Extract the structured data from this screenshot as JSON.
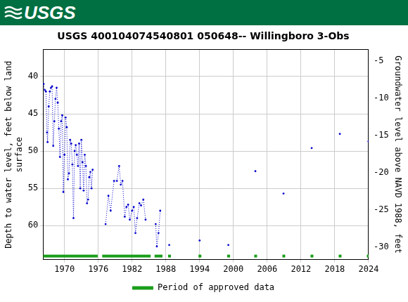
{
  "banner": {
    "text": "USGS"
  },
  "chart_data": {
    "type": "scatter",
    "title": "USGS 400104074540801 050648-- Willingboro 3-Obs",
    "y_label": [
      "Depth to water level, feet below land",
      "surface"
    ],
    "y2_label": "Groundwater level above NAVD 1988, feet",
    "xlim": [
      1966.2,
      2024
    ],
    "xticks": [
      1970,
      1976,
      1982,
      1988,
      1994,
      2000,
      2006,
      2012,
      2018,
      2024
    ],
    "ylim": [
      64.56,
      36.4
    ],
    "yticks": [
      40,
      45,
      50,
      55,
      60
    ],
    "y2lim": [
      -31.66,
      -3.5
    ],
    "y2ticks": [
      -30,
      -25,
      -20,
      -15,
      -10,
      -5
    ],
    "grid": true,
    "legend": "bottom",
    "series": [
      {
        "name": "Depth to water level",
        "color": "#0000cc",
        "marker": "circle",
        "line_style": "dotted",
        "x": [
          1966.3,
          1966.5,
          1966.7,
          1966.9,
          1967.0,
          1967.2,
          1967.4,
          1967.6,
          1967.8,
          1968.0,
          1968.2,
          1968.4,
          1968.6,
          1968.8,
          1969.0,
          1969.2,
          1969.4,
          1969.6,
          1969.8,
          1970.0,
          1970.2,
          1970.4,
          1970.6,
          1970.8,
          1971.0,
          1971.2,
          1971.4,
          1971.6,
          1971.8,
          1972.0,
          1972.2,
          1972.4,
          1972.6,
          1972.8,
          1973.0,
          1973.2,
          1973.4,
          1973.6,
          1973.8,
          1974.0,
          1974.2,
          1974.4,
          1974.6,
          1974.8,
          1975.0,
          null,
          1977.3,
          1977.8,
          1978.2,
          1978.8,
          1979.3,
          1979.7,
          1980.0,
          1980.3,
          1980.7,
          1981.0,
          1981.3,
          1981.6,
          1982.0,
          1982.3,
          1982.6,
          1982.9,
          1983.3,
          1983.6,
          1984.0,
          1984.4,
          null,
          1986.2,
          1986.4,
          1986.7,
          1987.0,
          null,
          1988.6,
          null,
          1994.0,
          null,
          1999.1,
          null,
          2003.9,
          null,
          2008.9,
          null,
          2013.9,
          null,
          2018.9,
          null,
          2024.0
        ],
        "values": [
          41.0,
          41.8,
          42.0,
          47.5,
          48.8,
          44.0,
          42.0,
          41.5,
          41.3,
          49.3,
          46.0,
          43.0,
          41.5,
          43.5,
          47.0,
          50.8,
          46.0,
          45.2,
          55.5,
          50.5,
          45.5,
          46.8,
          53.8,
          53.0,
          48.5,
          49.0,
          51.8,
          59.0,
          50.0,
          49.2,
          50.5,
          52.0,
          49.0,
          55.0,
          48.5,
          51.5,
          55.3,
          50.5,
          52.0,
          57.0,
          56.5,
          53.5,
          52.8,
          55.0,
          52.5,
          null,
          59.8,
          56.0,
          58.0,
          54.0,
          54.0,
          52.0,
          54.5,
          54.0,
          58.8,
          57.5,
          57.2,
          59.2,
          58.0,
          57.5,
          61.0,
          59.0,
          57.0,
          57.3,
          56.5,
          59.2,
          null,
          59.8,
          62.8,
          61.0,
          58.0,
          null,
          62.6,
          null,
          62.0,
          null,
          62.6,
          null,
          52.7,
          null,
          55.7,
          null,
          49.6,
          null,
          47.7,
          null,
          48.7
        ]
      }
    ],
    "approved_periods": {
      "name": "Period of approved data",
      "color": "#1a9e1a",
      "periods": [
        [
          1966.2,
          1975.9
        ],
        [
          1976.7,
          1985.3
        ],
        [
          1986.0,
          1987.4
        ],
        [
          1988.4,
          1988.9
        ],
        [
          1993.8,
          1994.3
        ],
        [
          1998.9,
          1999.4
        ],
        [
          2003.7,
          2004.2
        ],
        [
          2008.7,
          2009.2
        ],
        [
          2013.7,
          2014.2
        ],
        [
          2018.7,
          2019.2
        ],
        [
          2023.7,
          2024.0
        ]
      ]
    }
  }
}
